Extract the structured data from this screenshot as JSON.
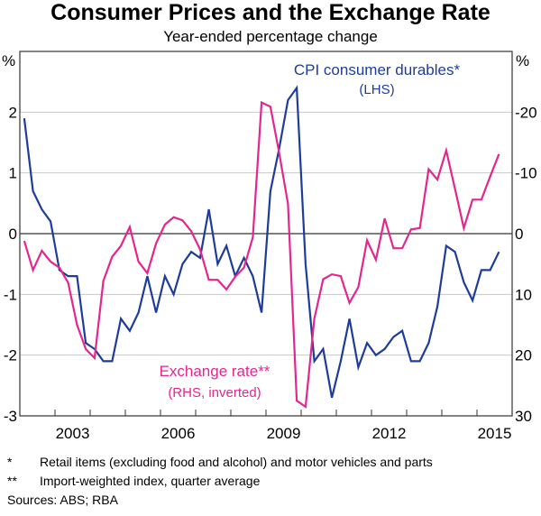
{
  "chart_data": {
    "type": "line",
    "title": "Consumer Prices and the Exchange Rate",
    "subtitle": "Year-ended percentage change",
    "x_range": [
      2002,
      2016
    ],
    "x_ticks": [
      "2003",
      "2006",
      "2009",
      "2012",
      "2015"
    ],
    "y_left": {
      "unit": "%",
      "range": [
        -3,
        3
      ],
      "ticks": [
        2,
        1,
        0,
        -1,
        -2,
        -3
      ]
    },
    "y_right": {
      "unit": "%",
      "range": [
        30,
        -30
      ],
      "inverted": true,
      "ticks": [
        -20,
        -10,
        0,
        10,
        20,
        30
      ]
    },
    "grid": true,
    "x_start": "2002-Q1",
    "frequency": "quarterly",
    "series": [
      {
        "name": "CPI consumer durables*",
        "axis_label": "(LHS)",
        "axis": "left",
        "color": "#1f3d98",
        "values": [
          1.9,
          0.7,
          0.4,
          0.2,
          -0.6,
          -0.7,
          -0.7,
          -1.8,
          -1.9,
          -2.1,
          -2.1,
          -1.4,
          -1.6,
          -1.3,
          -0.7,
          -1.3,
          -0.7,
          -1.0,
          -0.5,
          -0.3,
          -0.4,
          0.4,
          -0.5,
          -0.2,
          -0.7,
          -0.4,
          -0.7,
          -1.3,
          0.7,
          1.4,
          2.2,
          2.4,
          -0.5,
          -2.1,
          -1.9,
          -2.7,
          -2.1,
          -1.4,
          -2.2,
          -1.8,
          -2.0,
          -1.9,
          -1.7,
          -1.6,
          -2.1,
          -2.1,
          -1.8,
          -1.2,
          -0.2,
          -0.3,
          -0.8,
          -1.1,
          -0.6,
          -0.6,
          -0.3
        ]
      },
      {
        "name": "Exchange rate**",
        "axis_label": "(RHS, inverted)",
        "axis": "right",
        "color": "#e4268f",
        "values": [
          1.2,
          6.0,
          2.8,
          4.6,
          5.6,
          8.1,
          15.0,
          19.0,
          20.5,
          7.8,
          3.8,
          2.0,
          -1.1,
          4.6,
          6.5,
          1.6,
          -1.5,
          -2.7,
          -2.2,
          -0.4,
          2.6,
          7.6,
          7.6,
          9.2,
          7.1,
          5.6,
          0.6,
          -21.6,
          -20.9,
          -13.3,
          -4.9,
          27.5,
          28.5,
          14.0,
          7.5,
          6.7,
          7.0,
          11.4,
          8.8,
          1.1,
          4.3,
          -2.5,
          2.4,
          2.4,
          -0.7,
          -0.9,
          -10.6,
          -8.9,
          -13.7,
          -7.4,
          -0.9,
          -5.6,
          -5.6,
          -9.4,
          -13.1
        ]
      }
    ]
  },
  "notes": [
    {
      "mark": "*",
      "text": "Retail items (excluding food and alcohol) and motor vehicles and parts"
    },
    {
      "mark": "**",
      "text": "Import-weighted index, quarter average"
    }
  ],
  "sources": "Sources:  ABS; RBA"
}
